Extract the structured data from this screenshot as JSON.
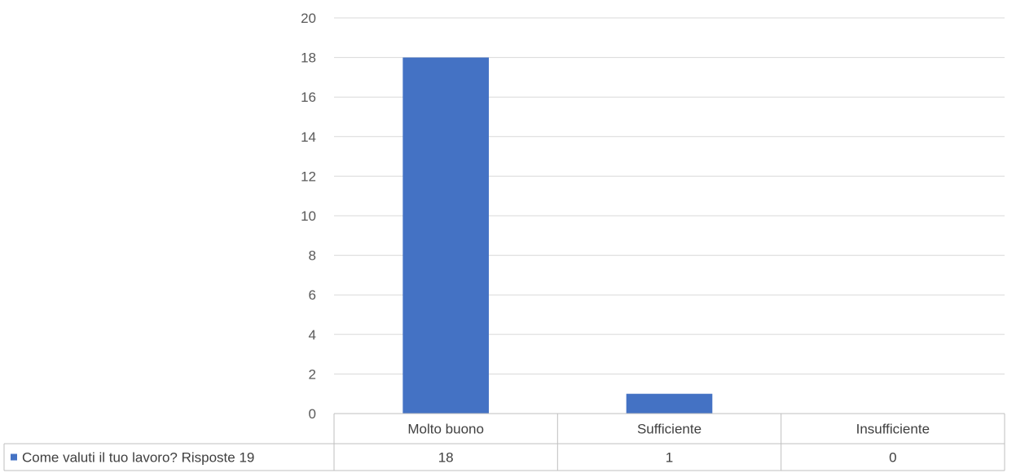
{
  "chart_data": {
    "type": "bar",
    "categories": [
      "Molto buono",
      "Sufficiente",
      "Insufficiente"
    ],
    "series": [
      {
        "name": "Come valuti il tuo lavoro? Risposte 19",
        "values": [
          18,
          1,
          0
        ]
      }
    ],
    "ylim": [
      0,
      20
    ],
    "yticks": [
      0,
      2,
      4,
      6,
      8,
      10,
      12,
      14,
      16,
      18,
      20
    ],
    "data_table": {
      "row_label": "Come valuti il tuo lavoro? Risposte 19",
      "cells": [
        "18",
        "1",
        "0"
      ]
    },
    "grid": true,
    "legend": "data-table-key",
    "colors": {
      "series": "#4472C4",
      "grid": "#D9D9D9",
      "table_border": "#BFBFBF"
    }
  }
}
